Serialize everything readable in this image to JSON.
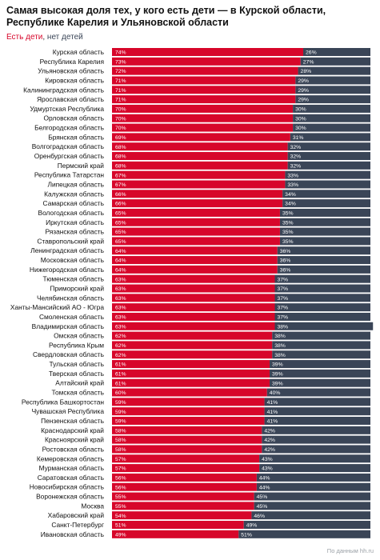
{
  "title": "Самая высокая доля тех, у кого есть дети — в Курской области, Республике Карелия и Ульяновской области",
  "legend": {
    "has": "Есть дети",
    "sep": ", ",
    "not": "нет детей"
  },
  "source": "По данным hh.ru",
  "colors": {
    "has": "#d7062a",
    "not": "#3a4557"
  },
  "chart_data": {
    "type": "bar",
    "orientation": "horizontal",
    "stacked": true,
    "xlim": [
      0,
      100
    ],
    "value_format": "{v}%",
    "series": [
      {
        "name": "Есть дети"
      },
      {
        "name": "нет детей"
      }
    ],
    "categories": [
      "Курская область",
      "Республика Карелия",
      "Ульяновская область",
      "Кировская область",
      "Калининградская область",
      "Ярославская область",
      "Удмуртская Республика",
      "Орловская область",
      "Белгородская область",
      "Брянская область",
      "Волгоградская область",
      "Оренбургская область",
      "Пермский край",
      "Республика Татарстан",
      "Липецкая область",
      "Калужская область",
      "Самарская область",
      "Вологодская область",
      "Иркутская область",
      "Рязанская область",
      "Ставропольский край",
      "Ленинградская область",
      "Московская область",
      "Нижегородская область",
      "Тюменская область",
      "Приморский край",
      "Челябинская область",
      "Ханты-Мансийский АО - Югра",
      "Смоленская область",
      "Владимирская область",
      "Омская область",
      "Республика Крым",
      "Свердловская область",
      "Тульская область",
      "Тверская область",
      "Алтайский край",
      "Томская область",
      "Республика Башкортостан",
      "Чувашская Республика",
      "Пензенская область",
      "Краснодарский край",
      "Красноярский край",
      "Ростовская область",
      "Кемеровская область",
      "Мурманская область",
      "Саратовская область",
      "Новосибирская область",
      "Воронежская область",
      "Москва",
      "Хабаровский край",
      "Санкт-Петербург",
      "Ивановская область"
    ],
    "has_children": [
      74,
      73,
      72,
      71,
      71,
      71,
      70,
      70,
      70,
      69,
      68,
      68,
      68,
      67,
      67,
      66,
      66,
      65,
      65,
      65,
      65,
      64,
      64,
      64,
      63,
      63,
      63,
      63,
      63,
      63,
      62,
      62,
      62,
      61,
      61,
      61,
      60,
      59,
      59,
      59,
      58,
      58,
      58,
      57,
      57,
      56,
      56,
      55,
      55,
      54,
      51,
      49
    ],
    "no_children": [
      26,
      27,
      28,
      29,
      29,
      29,
      30,
      30,
      30,
      31,
      32,
      32,
      32,
      33,
      33,
      34,
      34,
      35,
      35,
      35,
      35,
      36,
      36,
      36,
      37,
      37,
      37,
      37,
      37,
      38,
      38,
      38,
      38,
      39,
      39,
      39,
      40,
      41,
      41,
      41,
      42,
      42,
      42,
      43,
      43,
      44,
      44,
      45,
      45,
      46,
      49,
      51
    ]
  }
}
